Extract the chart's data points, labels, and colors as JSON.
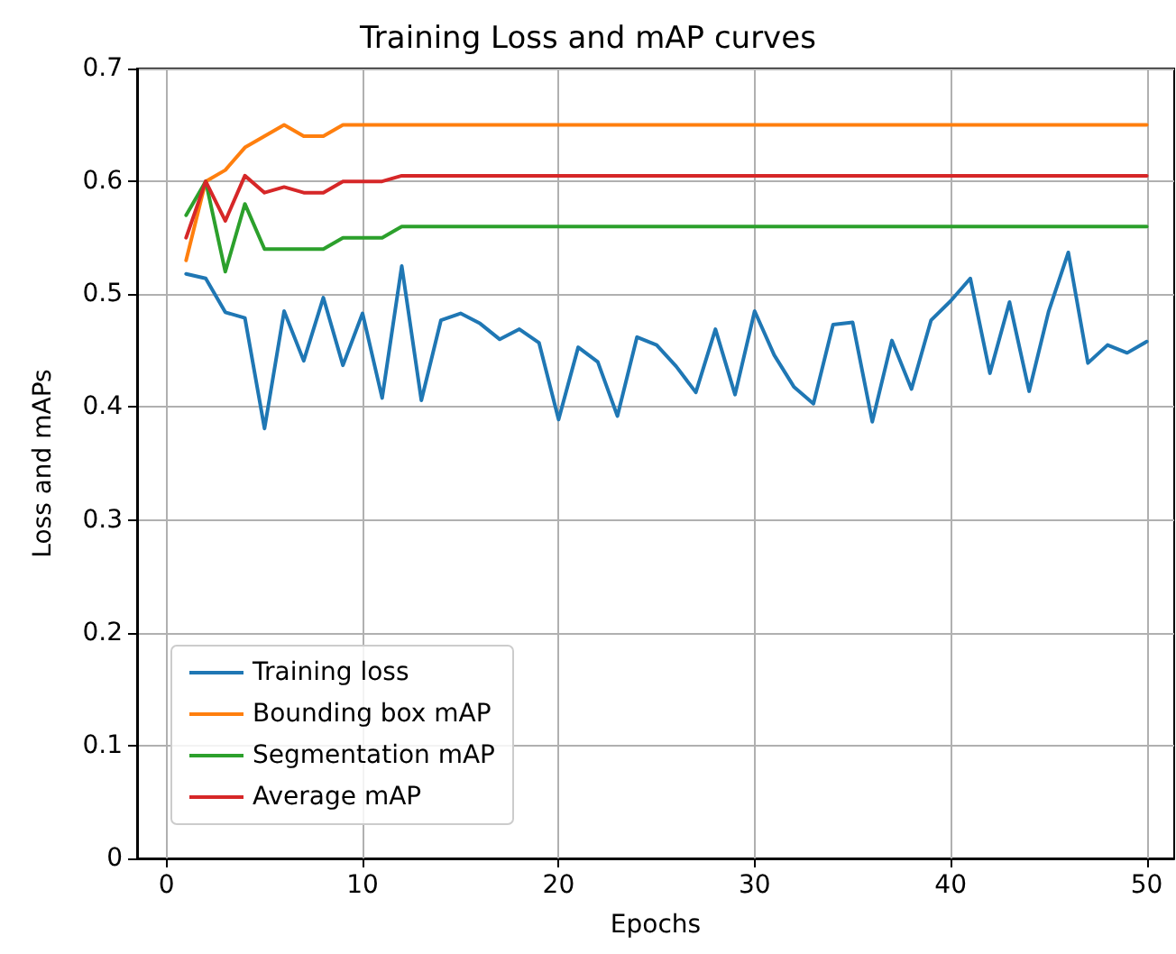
{
  "chart_data": {
    "type": "line",
    "title": "Training Loss and mAP curves",
    "xlabel": "Epochs",
    "ylabel": "Loss and mAPs",
    "x": [
      1,
      2,
      3,
      4,
      5,
      6,
      7,
      8,
      9,
      10,
      11,
      12,
      13,
      14,
      15,
      16,
      17,
      18,
      19,
      20,
      21,
      22,
      23,
      24,
      25,
      26,
      27,
      28,
      29,
      30,
      31,
      32,
      33,
      34,
      35,
      36,
      37,
      38,
      39,
      40,
      41,
      42,
      43,
      44,
      45,
      46,
      47,
      48,
      49,
      50
    ],
    "series": [
      {
        "name": "Training loss",
        "color": "#1f77b4",
        "values": [
          0.518,
          0.514,
          0.484,
          0.479,
          0.381,
          0.485,
          0.441,
          0.497,
          0.437,
          0.483,
          0.408,
          0.525,
          0.406,
          0.477,
          0.483,
          0.474,
          0.46,
          0.469,
          0.457,
          0.389,
          0.453,
          0.44,
          0.392,
          0.462,
          0.455,
          0.436,
          0.413,
          0.469,
          0.411,
          0.485,
          0.446,
          0.418,
          0.403,
          0.473,
          0.475,
          0.387,
          0.459,
          0.416,
          0.477,
          0.494,
          0.514,
          0.43,
          0.493,
          0.414,
          0.485,
          0.537,
          0.439,
          0.455,
          0.448,
          0.458
        ]
      },
      {
        "name": "Bounding box mAP",
        "color": "#ff7f0e",
        "values": [
          0.53,
          0.6,
          0.61,
          0.63,
          0.64,
          0.65,
          0.64,
          0.64,
          0.65,
          0.65,
          0.65,
          0.65,
          0.65,
          0.65,
          0.65,
          0.65,
          0.65,
          0.65,
          0.65,
          0.65,
          0.65,
          0.65,
          0.65,
          0.65,
          0.65,
          0.65,
          0.65,
          0.65,
          0.65,
          0.65,
          0.65,
          0.65,
          0.65,
          0.65,
          0.65,
          0.65,
          0.65,
          0.65,
          0.65,
          0.65,
          0.65,
          0.65,
          0.65,
          0.65,
          0.65,
          0.65,
          0.65,
          0.65,
          0.65,
          0.65
        ]
      },
      {
        "name": "Segmentation mAP",
        "color": "#2ca02c",
        "values": [
          0.57,
          0.6,
          0.52,
          0.58,
          0.54,
          0.54,
          0.54,
          0.54,
          0.55,
          0.55,
          0.55,
          0.56,
          0.56,
          0.56,
          0.56,
          0.56,
          0.56,
          0.56,
          0.56,
          0.56,
          0.56,
          0.56,
          0.56,
          0.56,
          0.56,
          0.56,
          0.56,
          0.56,
          0.56,
          0.56,
          0.56,
          0.56,
          0.56,
          0.56,
          0.56,
          0.56,
          0.56,
          0.56,
          0.56,
          0.56,
          0.56,
          0.56,
          0.56,
          0.56,
          0.56,
          0.56,
          0.56,
          0.56,
          0.56,
          0.56
        ]
      },
      {
        "name": "Average mAP",
        "color": "#d62728",
        "values": [
          0.55,
          0.6,
          0.565,
          0.605,
          0.59,
          0.595,
          0.59,
          0.59,
          0.6,
          0.6,
          0.6,
          0.605,
          0.605,
          0.605,
          0.605,
          0.605,
          0.605,
          0.605,
          0.605,
          0.605,
          0.605,
          0.605,
          0.605,
          0.605,
          0.605,
          0.605,
          0.605,
          0.605,
          0.605,
          0.605,
          0.605,
          0.605,
          0.605,
          0.605,
          0.605,
          0.605,
          0.605,
          0.605,
          0.605,
          0.605,
          0.605,
          0.605,
          0.605,
          0.605,
          0.605,
          0.605,
          0.605,
          0.605,
          0.605,
          0.605
        ]
      }
    ],
    "xlim": [
      -1.5,
      51.4
    ],
    "xticks": [
      0,
      10,
      20,
      30,
      40,
      50
    ],
    "ylim": [
      0,
      0.7
    ],
    "yticks": [
      0,
      0.1,
      0.2,
      0.3,
      0.4,
      0.5,
      0.6,
      0.7
    ],
    "grid": true,
    "legend": "bottom left",
    "marker": "none",
    "line_style": "solid"
  }
}
